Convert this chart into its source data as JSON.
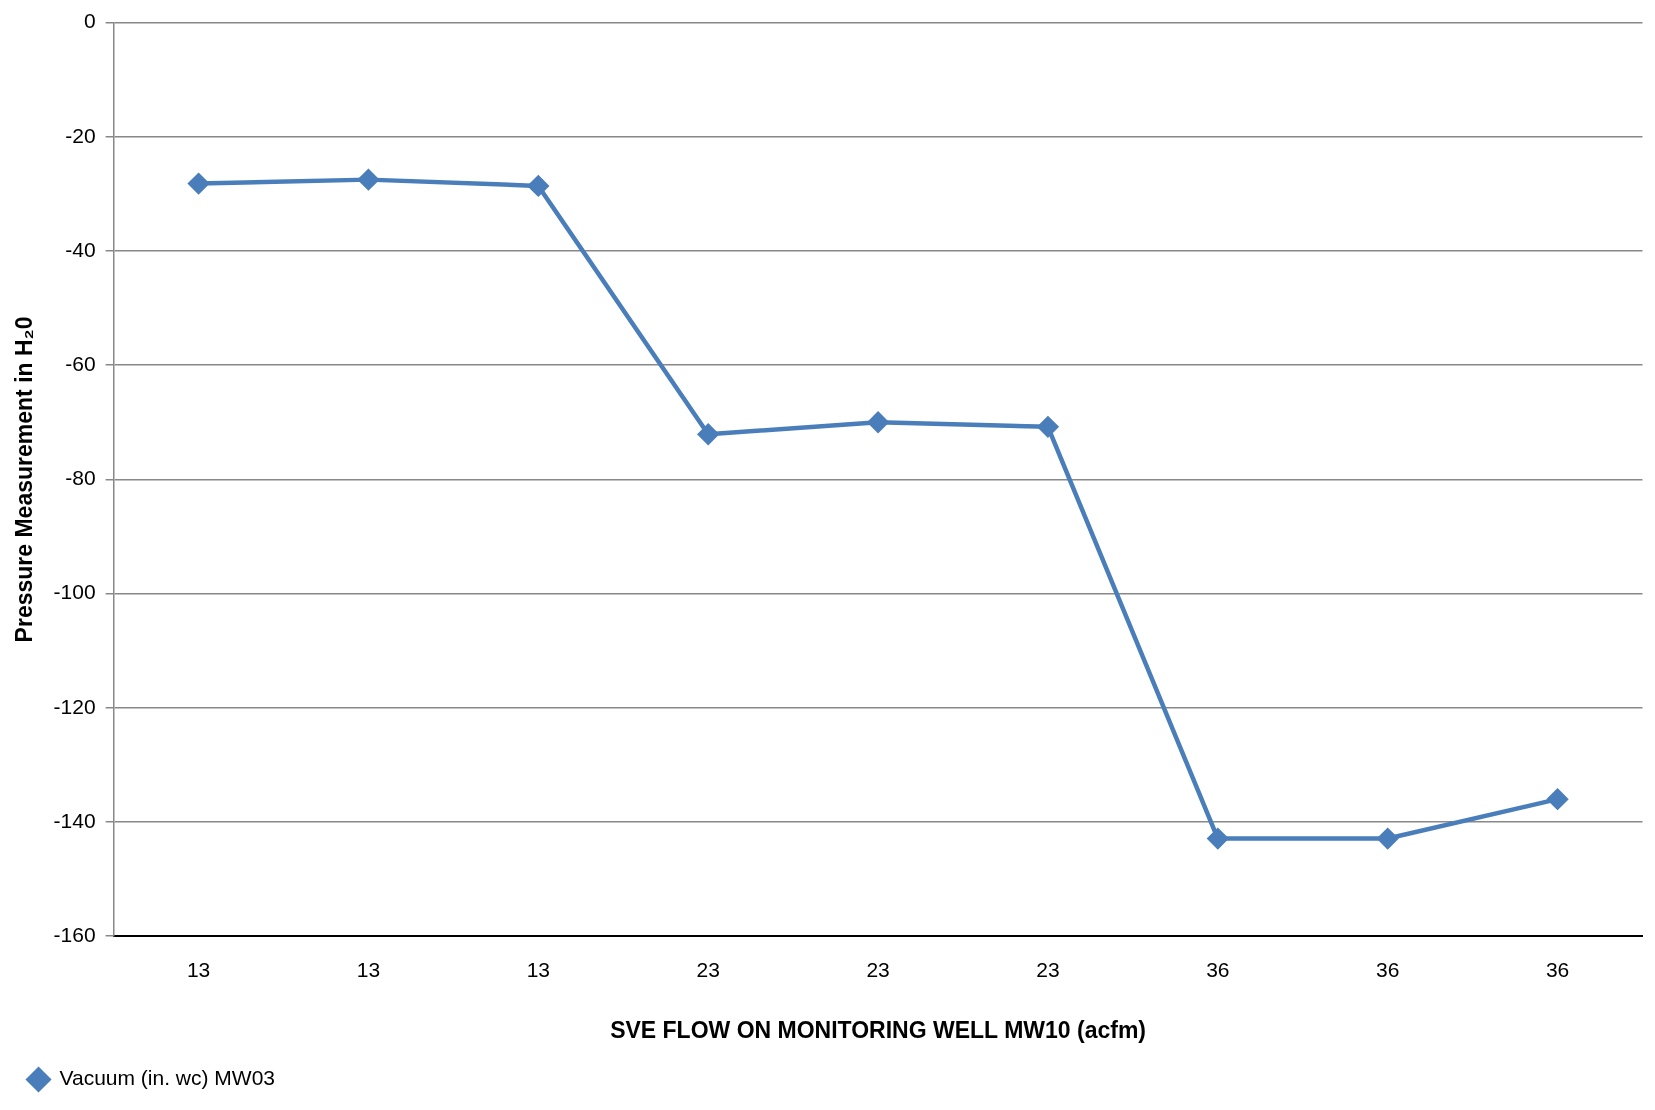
{
  "chart_data": {
    "type": "line",
    "xlabel": "SVE FLOW ON MONITORING WELL MW10 (acfm)",
    "ylabel": "Pressure Measurement in H₂0",
    "categories": [
      "13",
      "13",
      "13",
      "23",
      "23",
      "23",
      "36",
      "36",
      "36"
    ],
    "series": [
      {
        "name": "Vacuum (in. wc) MW03",
        "color": "#4a7ebb",
        "values": [
          -28.2,
          -27.5,
          -28.6,
          -72.1,
          -70,
          -70.8,
          -142.9,
          -142.9,
          -136
        ]
      }
    ],
    "ylim": [
      -160,
      0
    ],
    "yticks": [
      -160,
      -140,
      -120,
      -100,
      -80,
      -60,
      -40,
      -20,
      0
    ],
    "grid": "y",
    "legend": "bottom left",
    "marker": "diamond",
    "line_style": "solid"
  }
}
